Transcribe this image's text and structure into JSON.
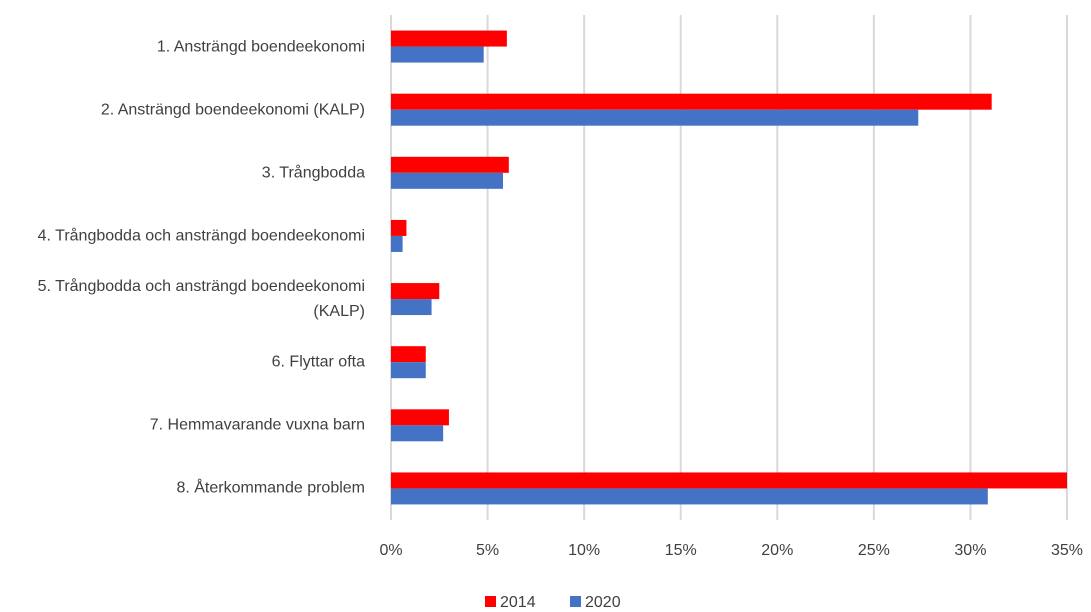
{
  "chart_data": {
    "type": "hbar",
    "categories": [
      "1. Ansträngd boendeekonomi",
      "2. Ansträngd boendeekonomi (KALP)",
      "3. Trångbodda",
      "4. Trångbodda och ansträngd boendeekonomi",
      "5. Trångbodda och ansträngd boendeekonomi (KALP)",
      "6. Flyttar ofta",
      "7. Hemmavarande vuxna barn",
      "8. Återkommande problem"
    ],
    "series": [
      {
        "name": "2014",
        "color": "#ff0000",
        "values": [
          6.0,
          31.1,
          6.1,
          0.8,
          2.5,
          1.8,
          3.0,
          35.0
        ]
      },
      {
        "name": "2020",
        "color": "#4472c4",
        "values": [
          4.8,
          27.3,
          5.8,
          0.6,
          2.1,
          1.8,
          2.7,
          30.9
        ]
      }
    ],
    "xlim": [
      0,
      35
    ],
    "xticks": [
      {
        "value": 0,
        "label": "0%"
      },
      {
        "value": 5,
        "label": "5%"
      },
      {
        "value": 10,
        "label": "10%"
      },
      {
        "value": 15,
        "label": "15%"
      },
      {
        "value": 20,
        "label": "20%"
      },
      {
        "value": 25,
        "label": "25%"
      },
      {
        "value": 30,
        "label": "30%"
      },
      {
        "value": 35,
        "label": "35%"
      }
    ],
    "grid": true,
    "legend": "bottom"
  }
}
